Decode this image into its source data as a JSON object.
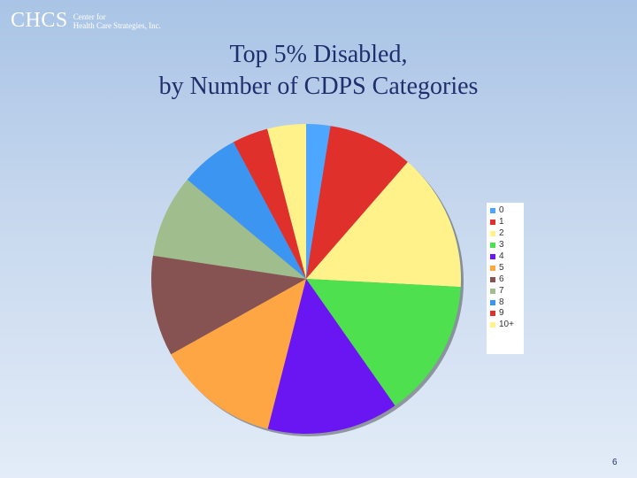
{
  "logo": {
    "mark": "CHCS",
    "subtitle_line1": "Center for",
    "subtitle_line2": "Health Care Strategies, Inc."
  },
  "title": {
    "line1": "Top 5% Disabled,",
    "line2": "by Number of CDPS Categories"
  },
  "page_number": "6",
  "chart_data": {
    "type": "pie",
    "title": "Top 5% Disabled, by Number of CDPS Categories",
    "categories": [
      "0",
      "1",
      "2",
      "3",
      "4",
      "5",
      "6",
      "7",
      "8",
      "9",
      "10+"
    ],
    "values": [
      2.5,
      8.8,
      14.3,
      14.3,
      13.6,
      12.8,
      10.4,
      8.6,
      6.1,
      3.7,
      4.0
    ],
    "colors": [
      "#4da6ff",
      "#e0302c",
      "#fff28a",
      "#4ee04e",
      "#6a16f2",
      "#ffa644",
      "#875252",
      "#a0bd8e",
      "#3d95f2",
      "#e0302c",
      "#fff28a"
    ],
    "start_angle_deg": 0,
    "direction": "clockwise",
    "legend_position": "right"
  }
}
